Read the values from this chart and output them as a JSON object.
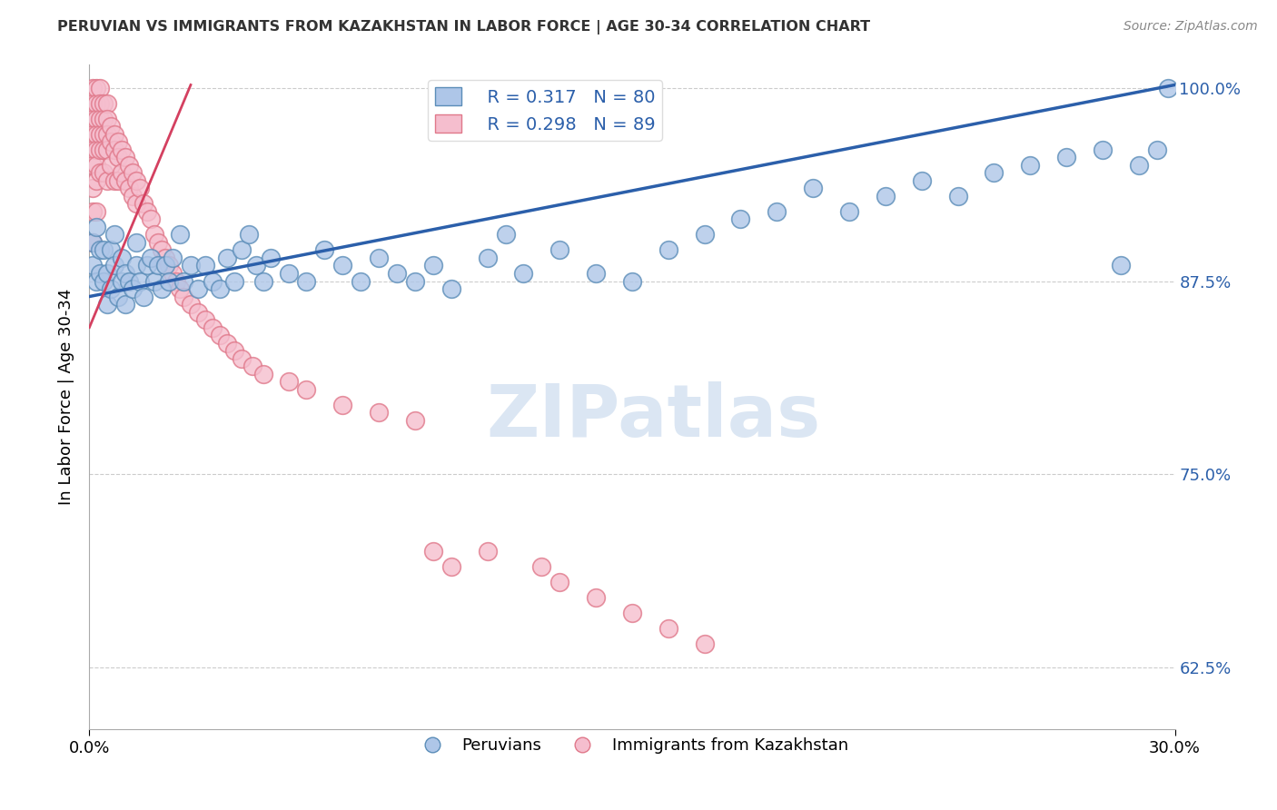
{
  "title": "PERUVIAN VS IMMIGRANTS FROM KAZAKHSTAN IN LABOR FORCE | AGE 30-34 CORRELATION CHART",
  "source": "Source: ZipAtlas.com",
  "ylabel": "In Labor Force | Age 30-34",
  "xmin": 0.0,
  "xmax": 0.3,
  "ymin": 0.585,
  "ymax": 1.015,
  "yticks": [
    0.625,
    0.75,
    0.875,
    1.0
  ],
  "ytick_labels": [
    "62.5%",
    "75.0%",
    "87.5%",
    "100.0%"
  ],
  "xtick_left": "0.0%",
  "xtick_right": "30.0%",
  "blue_R": 0.317,
  "blue_N": 80,
  "pink_R": 0.298,
  "pink_N": 89,
  "blue_color": "#aec6e8",
  "blue_edge": "#5b8db8",
  "pink_color": "#f5bece",
  "pink_edge": "#e0788a",
  "blue_line_color": "#2b5faa",
  "pink_line_color": "#d44060",
  "watermark_text": "ZIPatlas",
  "watermark_color": "#ccdcee",
  "legend_label_blue": "Peruvians",
  "legend_label_pink": "Immigrants from Kazakhstan",
  "blue_line_x0": 0.0,
  "blue_line_y0": 0.865,
  "blue_line_x1": 0.3,
  "blue_line_y1": 1.002,
  "pink_line_x0": 0.0,
  "pink_line_y0": 0.845,
  "pink_line_x1": 0.028,
  "pink_line_y1": 1.002,
  "blue_pts_x": [
    0.001,
    0.001,
    0.002,
    0.002,
    0.003,
    0.003,
    0.004,
    0.004,
    0.005,
    0.005,
    0.006,
    0.006,
    0.007,
    0.007,
    0.008,
    0.009,
    0.009,
    0.01,
    0.01,
    0.011,
    0.012,
    0.013,
    0.013,
    0.014,
    0.015,
    0.016,
    0.017,
    0.018,
    0.019,
    0.02,
    0.021,
    0.022,
    0.023,
    0.025,
    0.026,
    0.028,
    0.03,
    0.032,
    0.034,
    0.036,
    0.038,
    0.04,
    0.042,
    0.044,
    0.046,
    0.048,
    0.05,
    0.055,
    0.06,
    0.065,
    0.07,
    0.075,
    0.08,
    0.085,
    0.09,
    0.095,
    0.1,
    0.11,
    0.115,
    0.12,
    0.13,
    0.14,
    0.15,
    0.16,
    0.17,
    0.18,
    0.19,
    0.2,
    0.21,
    0.22,
    0.23,
    0.24,
    0.25,
    0.26,
    0.27,
    0.28,
    0.285,
    0.29,
    0.295,
    0.298
  ],
  "blue_pts_y": [
    0.9,
    0.885,
    0.91,
    0.875,
    0.895,
    0.88,
    0.875,
    0.895,
    0.88,
    0.86,
    0.87,
    0.895,
    0.885,
    0.905,
    0.865,
    0.875,
    0.89,
    0.86,
    0.88,
    0.875,
    0.87,
    0.885,
    0.9,
    0.875,
    0.865,
    0.885,
    0.89,
    0.875,
    0.885,
    0.87,
    0.885,
    0.875,
    0.89,
    0.905,
    0.875,
    0.885,
    0.87,
    0.885,
    0.875,
    0.87,
    0.89,
    0.875,
    0.895,
    0.905,
    0.885,
    0.875,
    0.89,
    0.88,
    0.875,
    0.895,
    0.885,
    0.875,
    0.89,
    0.88,
    0.875,
    0.885,
    0.87,
    0.89,
    0.905,
    0.88,
    0.895,
    0.88,
    0.875,
    0.895,
    0.905,
    0.915,
    0.92,
    0.935,
    0.92,
    0.93,
    0.94,
    0.93,
    0.945,
    0.95,
    0.955,
    0.96,
    0.885,
    0.95,
    0.96,
    1.0
  ],
  "pink_pts_x": [
    0.001,
    0.001,
    0.001,
    0.001,
    0.001,
    0.001,
    0.001,
    0.001,
    0.001,
    0.002,
    0.002,
    0.002,
    0.002,
    0.002,
    0.002,
    0.002,
    0.002,
    0.003,
    0.003,
    0.003,
    0.003,
    0.003,
    0.003,
    0.004,
    0.004,
    0.004,
    0.004,
    0.004,
    0.005,
    0.005,
    0.005,
    0.005,
    0.005,
    0.006,
    0.006,
    0.006,
    0.007,
    0.007,
    0.007,
    0.008,
    0.008,
    0.008,
    0.009,
    0.009,
    0.01,
    0.01,
    0.011,
    0.011,
    0.012,
    0.012,
    0.013,
    0.013,
    0.014,
    0.015,
    0.016,
    0.017,
    0.018,
    0.019,
    0.02,
    0.021,
    0.022,
    0.023,
    0.024,
    0.025,
    0.026,
    0.028,
    0.03,
    0.032,
    0.034,
    0.036,
    0.038,
    0.04,
    0.042,
    0.045,
    0.048,
    0.055,
    0.06,
    0.07,
    0.08,
    0.09,
    0.095,
    0.1,
    0.11,
    0.125,
    0.13,
    0.14,
    0.15,
    0.16,
    0.17
  ],
  "pink_pts_y": [
    1.0,
    0.99,
    0.98,
    0.97,
    0.96,
    0.95,
    0.935,
    0.92,
    0.9,
    1.0,
    0.99,
    0.98,
    0.97,
    0.96,
    0.95,
    0.94,
    0.92,
    1.0,
    0.99,
    0.98,
    0.97,
    0.96,
    0.945,
    0.99,
    0.98,
    0.97,
    0.96,
    0.945,
    0.99,
    0.98,
    0.97,
    0.96,
    0.94,
    0.975,
    0.965,
    0.95,
    0.97,
    0.96,
    0.94,
    0.965,
    0.955,
    0.94,
    0.96,
    0.945,
    0.955,
    0.94,
    0.95,
    0.935,
    0.945,
    0.93,
    0.94,
    0.925,
    0.935,
    0.925,
    0.92,
    0.915,
    0.905,
    0.9,
    0.895,
    0.89,
    0.885,
    0.88,
    0.875,
    0.87,
    0.865,
    0.86,
    0.855,
    0.85,
    0.845,
    0.84,
    0.835,
    0.83,
    0.825,
    0.82,
    0.815,
    0.81,
    0.805,
    0.795,
    0.79,
    0.785,
    0.7,
    0.69,
    0.7,
    0.69,
    0.68,
    0.67,
    0.66,
    0.65,
    0.64
  ]
}
